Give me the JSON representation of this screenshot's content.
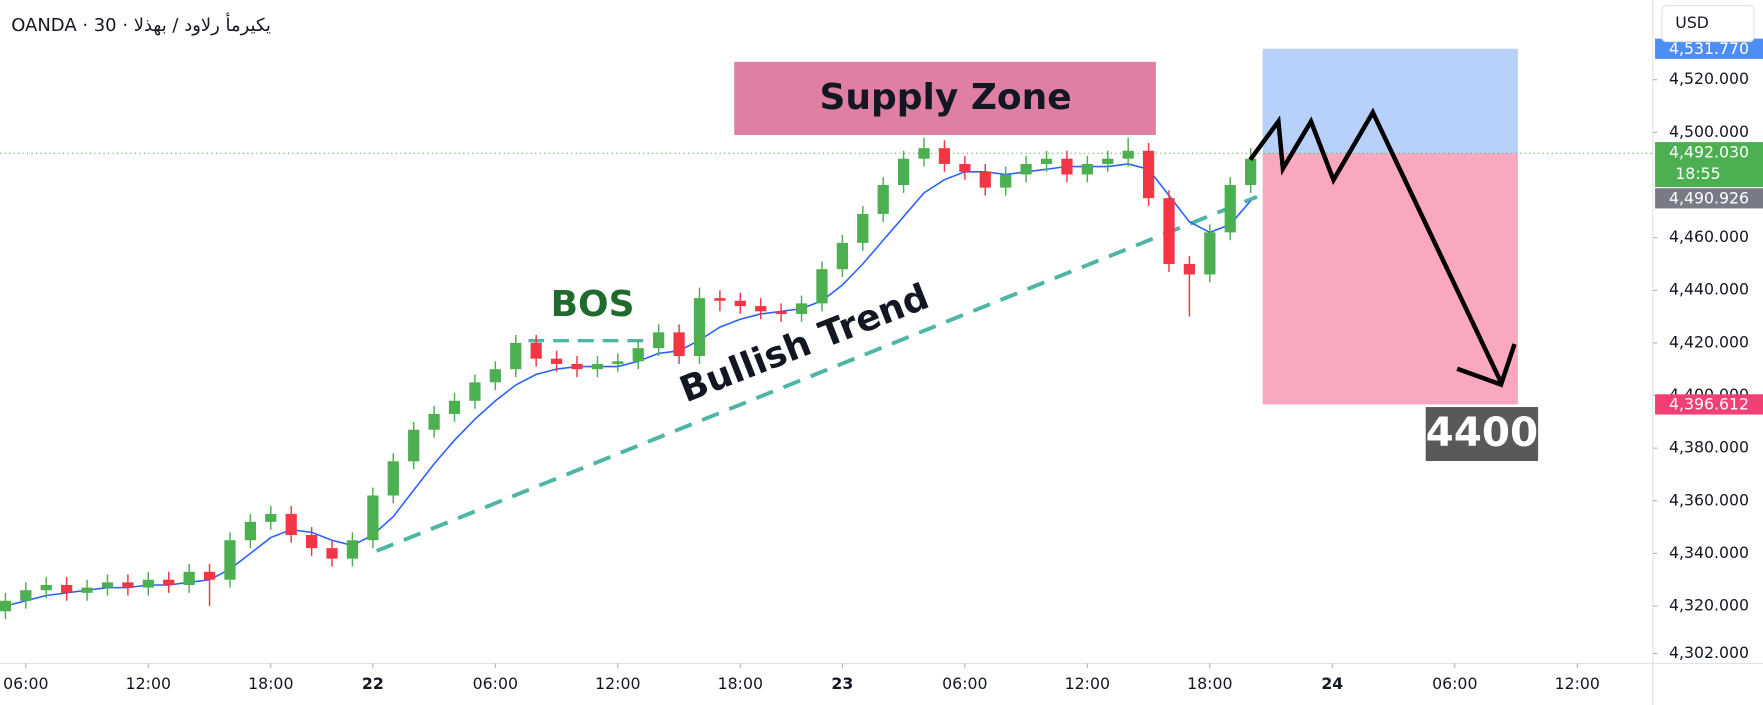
{
  "header": {
    "symbol": "OANDA · 30 · يكيرمأ رلاود / بهذلا",
    "currency": "USD"
  },
  "chart_data": {
    "type": "candlestick",
    "x": [
      -2,
      0,
      2,
      4,
      6,
      8,
      10,
      12,
      14,
      16,
      18,
      20,
      22,
      24,
      26,
      28,
      30,
      32,
      34,
      36,
      38,
      40,
      42,
      44,
      46,
      48,
      50,
      52,
      54,
      56,
      58,
      60,
      62,
      64,
      66,
      68,
      70,
      72,
      74,
      76,
      78,
      80,
      82,
      84,
      86,
      88,
      90,
      92,
      94,
      96,
      98,
      100,
      102,
      104,
      106,
      108,
      110,
      112,
      114,
      116,
      118,
      120
    ],
    "open": [
      4318,
      4322,
      4326,
      4328,
      4325,
      4327,
      4329,
      4327,
      4330,
      4328,
      4333,
      4330,
      4345,
      4352,
      4355,
      4347,
      4342,
      4338,
      4345,
      4362,
      4375,
      4387,
      4393,
      4398,
      4405,
      4410,
      4420,
      4414,
      4412,
      4410,
      4412,
      4413,
      4418,
      4424,
      4415,
      4437,
      4436,
      4434,
      4432,
      4431,
      4435,
      4448,
      4458,
      4469,
      4480,
      4490,
      4494,
      4488,
      4485,
      4479,
      4484,
      4488,
      4490,
      4484,
      4488,
      4490,
      4493,
      4475,
      4450,
      4446,
      4462,
      4480
    ],
    "high": [
      4325,
      4329,
      4331,
      4331,
      4330,
      4332,
      4332,
      4333,
      4333,
      4336,
      4336,
      4348,
      4355,
      4358,
      4358,
      4350,
      4345,
      4348,
      4365,
      4378,
      4390,
      4396,
      4401,
      4408,
      4413,
      4423,
      4423,
      4417,
      4415,
      4415,
      4416,
      4421,
      4427,
      4427,
      4441,
      4440,
      4439,
      4437,
      4435,
      4438,
      4451,
      4461,
      4472,
      4483,
      4493,
      4498,
      4497,
      4491,
      4488,
      4487,
      4491,
      4493,
      4493,
      4491,
      4493,
      4498,
      4496,
      4478,
      4453,
      4465,
      4483,
      4494
    ],
    "low": [
      4315,
      4319,
      4323,
      4322,
      4322,
      4324,
      4324,
      4324,
      4325,
      4325,
      4320,
      4327,
      4342,
      4349,
      4344,
      4339,
      4335,
      4335,
      4342,
      4359,
      4372,
      4384,
      4390,
      4395,
      4402,
      4407,
      4411,
      4409,
      4407,
      4407,
      4409,
      4410,
      4415,
      4412,
      4412,
      4432,
      4431,
      4429,
      4428,
      4428,
      4432,
      4445,
      4455,
      4466,
      4477,
      4487,
      4485,
      4482,
      4476,
      4476,
      4481,
      4485,
      4481,
      4481,
      4485,
      4487,
      4472,
      4447,
      4430,
      4443,
      4459,
      4477
    ],
    "close": [
      4322,
      4326,
      4328,
      4325,
      4327,
      4329,
      4327,
      4330,
      4328,
      4333,
      4330,
      4345,
      4352,
      4355,
      4347,
      4342,
      4338,
      4345,
      4362,
      4375,
      4387,
      4393,
      4398,
      4405,
      4410,
      4420,
      4414,
      4412,
      4410,
      4412,
      4413,
      4418,
      4424,
      4415,
      4437,
      4436,
      4434,
      4432,
      4431,
      4435,
      4448,
      4458,
      4469,
      4480,
      4490,
      4494,
      4488,
      4485,
      4479,
      4484,
      4488,
      4490,
      4484,
      4488,
      4490,
      4493,
      4475,
      4450,
      4446,
      4462,
      4480,
      4490
    ],
    "up_color": "#4caf50",
    "down_color": "#f23645",
    "ma": {
      "color": "#2962ff",
      "values": [
        4320,
        4322,
        4324,
        4325,
        4326,
        4327,
        4327,
        4328,
        4328,
        4329,
        4330,
        4334,
        4340,
        4346,
        4349,
        4348,
        4345,
        4343,
        4347,
        4354,
        4364,
        4374,
        4383,
        4391,
        4398,
        4404,
        4408,
        4410,
        4411,
        4411,
        4411,
        4413,
        4416,
        4417,
        4421,
        4426,
        4429,
        4431,
        4432,
        4433,
        4436,
        4442,
        4450,
        4459,
        4468,
        4477,
        4482,
        4485,
        4485,
        4484,
        4485,
        4486,
        4487,
        4487,
        4487,
        4488,
        4486,
        4476,
        4466,
        4462,
        4465,
        4474
      ]
    },
    "xlim": [
      -2.53,
      159.4
    ],
    "xticks": [
      {
        "value": 0,
        "label": "06:00"
      },
      {
        "value": 12,
        "label": "12:00"
      },
      {
        "value": 24,
        "label": "18:00"
      },
      {
        "value": 34,
        "label": "22"
      },
      {
        "value": 46,
        "label": "06:00"
      },
      {
        "value": 58,
        "label": "12:00"
      },
      {
        "value": 70,
        "label": "18:00"
      },
      {
        "value": 80,
        "label": "23"
      },
      {
        "value": 92,
        "label": "06:00"
      },
      {
        "value": 104,
        "label": "12:00"
      },
      {
        "value": 116,
        "label": "18:00"
      },
      {
        "value": 128,
        "label": "24"
      },
      {
        "value": 140,
        "label": "06:00"
      },
      {
        "value": 152,
        "label": "12:00"
      }
    ],
    "ylim": [
      4298.2,
      4550.3
    ],
    "yticks": [
      {
        "value": 4302,
        "label": "4,302.000"
      },
      {
        "value": 4320,
        "label": "4,320.000"
      },
      {
        "value": 4340,
        "label": "4,340.000"
      },
      {
        "value": 4360,
        "label": "4,360.000"
      },
      {
        "value": 4380,
        "label": "4,380.000"
      },
      {
        "value": 4400,
        "label": "4,400.000"
      },
      {
        "value": 4420,
        "label": "4,420.000"
      },
      {
        "value": 4440,
        "label": "4,440.000"
      },
      {
        "value": 4460,
        "label": "4,460.000"
      },
      {
        "value": 4500,
        "label": "4,500.000"
      },
      {
        "value": 4520,
        "label": "4,520.000"
      }
    ],
    "grid": false,
    "price_tags": [
      {
        "value": 4531.77,
        "label": "4,531.770",
        "color": "#4c8df6"
      },
      {
        "value": 4492.03,
        "label": "4,492.030",
        "color": "#4caf50"
      },
      {
        "value": 4490.926,
        "label": "4,490.926",
        "color": "#787b86"
      },
      {
        "value": 4396.612,
        "label": "4,396.612",
        "color": "#f23f74"
      }
    ],
    "countdown": "18:55",
    "annotations": {
      "supply_zone": "Supply Zone",
      "bos": "BOS",
      "trend": "Bullish Trend",
      "target": "4400"
    }
  }
}
